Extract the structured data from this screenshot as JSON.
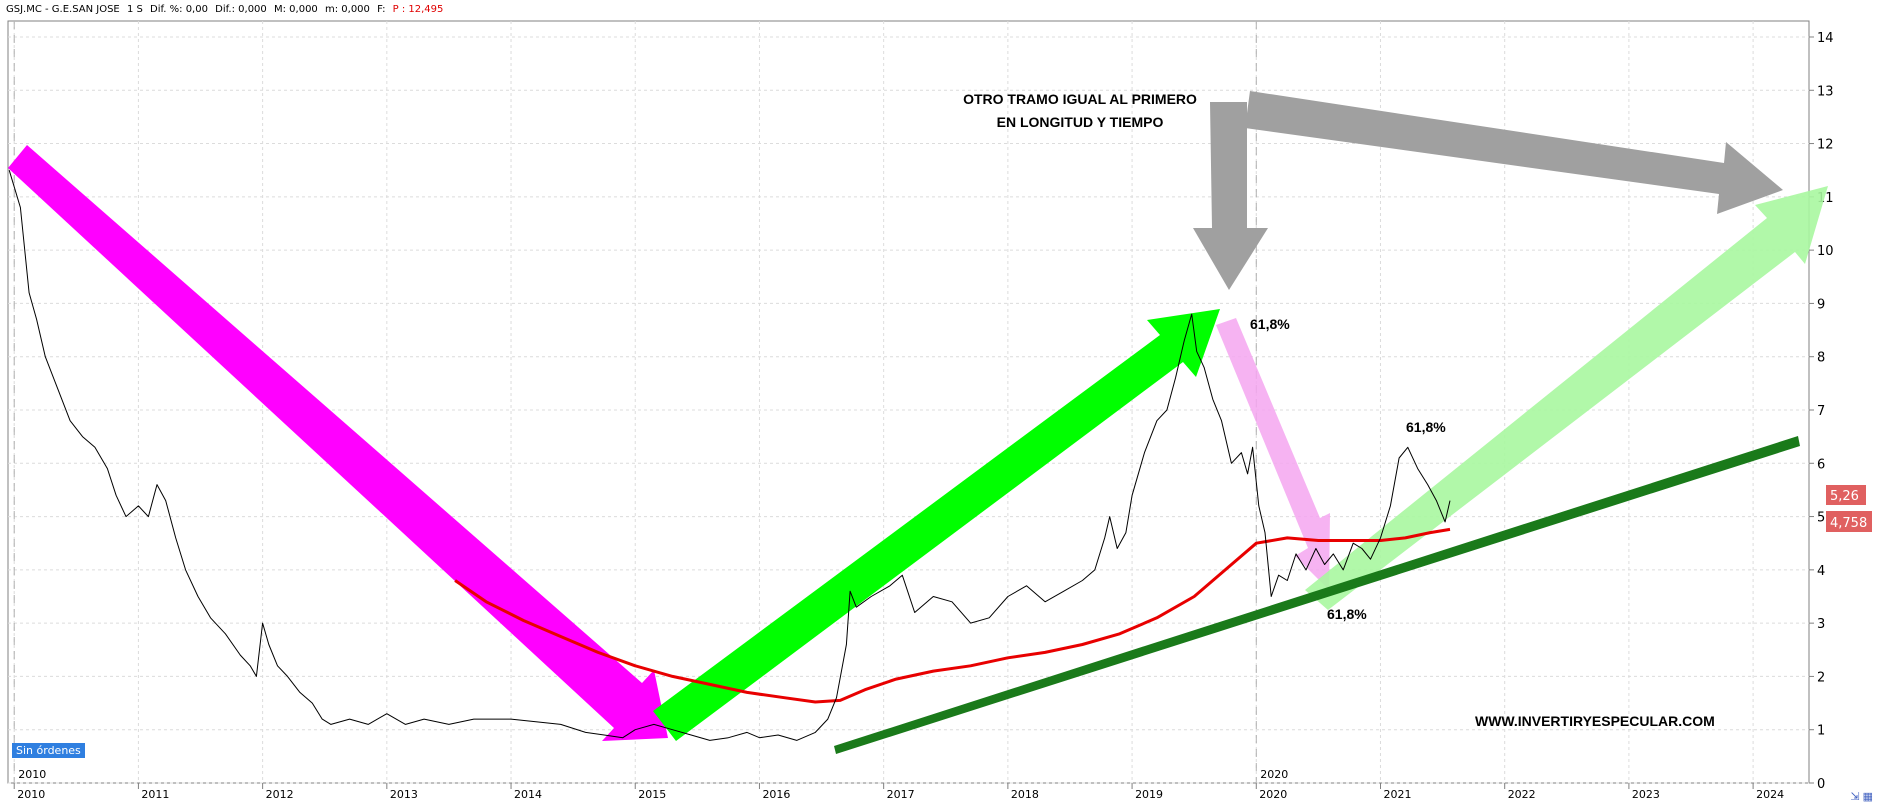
{
  "header": {
    "symbol": "GSJ.MC - G.E.SAN JOSE",
    "period": "1 S",
    "dif_pct": "Dif. %: 0,00",
    "dif": "Dif.: 0,000",
    "m1": "M: 0,000",
    "m2": "m: 0,000",
    "f": "F:",
    "price": "P : 12,495"
  },
  "badge": "Sin órdenes",
  "annotations": {
    "title_line1": "OTRO TRAMO IGUAL AL PRIMERO",
    "title_line2": "EN LONGITUD Y TIEMPO",
    "fib1": "61,8%",
    "fib2": "61,8%",
    "fib3": "61,8%",
    "website": "WWW.INVERTIRYESPECULAR.COM"
  },
  "price_tags": {
    "last": "5,26",
    "ma": "4,758"
  },
  "colors": {
    "magenta": "#ff00ff",
    "bright_green": "#00ff00",
    "light_green": "#a8f7a0",
    "dark_green": "#1a7a1a",
    "gray": "#a0a0a0",
    "pink": "#f5a6f0",
    "ma_red": "#e80000",
    "tag_red": "#e06060"
  },
  "icons": [
    "zoom-icon",
    "chart-type-icon"
  ],
  "chart_data": {
    "type": "line",
    "x_ticks": [
      "2010",
      "2011",
      "2012",
      "2013",
      "2014",
      "2015",
      "2016",
      "2017",
      "2018",
      "2019",
      "2020",
      "2021",
      "2022",
      "2023",
      "2024"
    ],
    "y_ticks": [
      "0",
      "1",
      "2",
      "3",
      "4",
      "5",
      "6",
      "7",
      "8",
      "9",
      "10",
      "11",
      "12",
      "13",
      "14"
    ],
    "xlim": [
      2009.95,
      2024.45
    ],
    "ylim": [
      0,
      14.3
    ],
    "marker_labels": [
      "2010",
      "2020"
    ],
    "series": [
      {
        "values": [
          [
            2009.96,
            11.5
          ],
          [
            2010.05,
            10.8
          ],
          [
            2010.12,
            9.2
          ],
          [
            2010.18,
            8.7
          ],
          [
            2010.25,
            8.0
          ],
          [
            2010.35,
            7.4
          ],
          [
            2010.45,
            6.8
          ],
          [
            2010.55,
            6.5
          ],
          [
            2010.65,
            6.3
          ],
          [
            2010.75,
            5.9
          ],
          [
            2010.82,
            5.4
          ],
          [
            2010.9,
            5.0
          ],
          [
            2011.0,
            5.2
          ],
          [
            2011.08,
            5.0
          ],
          [
            2011.15,
            5.6
          ],
          [
            2011.22,
            5.3
          ],
          [
            2011.3,
            4.6
          ],
          [
            2011.38,
            4.0
          ],
          [
            2011.48,
            3.5
          ],
          [
            2011.58,
            3.1
          ],
          [
            2011.7,
            2.8
          ],
          [
            2011.82,
            2.4
          ],
          [
            2011.9,
            2.2
          ],
          [
            2011.95,
            2.0
          ],
          [
            2012.0,
            3.0
          ],
          [
            2012.05,
            2.6
          ],
          [
            2012.12,
            2.2
          ],
          [
            2012.2,
            2.0
          ],
          [
            2012.3,
            1.7
          ],
          [
            2012.4,
            1.5
          ],
          [
            2012.48,
            1.2
          ],
          [
            2012.55,
            1.1
          ],
          [
            2012.7,
            1.2
          ],
          [
            2012.85,
            1.1
          ],
          [
            2013.0,
            1.3
          ],
          [
            2013.15,
            1.1
          ],
          [
            2013.3,
            1.2
          ],
          [
            2013.5,
            1.1
          ],
          [
            2013.7,
            1.2
          ],
          [
            2013.85,
            1.2
          ],
          [
            2014.0,
            1.2
          ],
          [
            2014.2,
            1.15
          ],
          [
            2014.4,
            1.1
          ],
          [
            2014.6,
            0.95
          ],
          [
            2014.75,
            0.9
          ],
          [
            2014.9,
            0.85
          ],
          [
            2015.0,
            1.0
          ],
          [
            2015.15,
            1.1
          ],
          [
            2015.3,
            1.0
          ],
          [
            2015.45,
            0.9
          ],
          [
            2015.6,
            0.8
          ],
          [
            2015.75,
            0.85
          ],
          [
            2015.9,
            0.95
          ],
          [
            2016.0,
            0.85
          ],
          [
            2016.15,
            0.9
          ],
          [
            2016.3,
            0.8
          ],
          [
            2016.45,
            0.95
          ],
          [
            2016.55,
            1.2
          ],
          [
            2016.62,
            1.6
          ],
          [
            2016.7,
            2.6
          ],
          [
            2016.73,
            3.6
          ],
          [
            2016.78,
            3.3
          ],
          [
            2016.9,
            3.5
          ],
          [
            2017.05,
            3.7
          ],
          [
            2017.15,
            3.9
          ],
          [
            2017.25,
            3.2
          ],
          [
            2017.4,
            3.5
          ],
          [
            2017.55,
            3.4
          ],
          [
            2017.7,
            3.0
          ],
          [
            2017.85,
            3.1
          ],
          [
            2018.0,
            3.5
          ],
          [
            2018.15,
            3.7
          ],
          [
            2018.3,
            3.4
          ],
          [
            2018.45,
            3.6
          ],
          [
            2018.6,
            3.8
          ],
          [
            2018.7,
            4.0
          ],
          [
            2018.78,
            4.6
          ],
          [
            2018.82,
            5.0
          ],
          [
            2018.88,
            4.4
          ],
          [
            2018.95,
            4.7
          ],
          [
            2019.0,
            5.4
          ],
          [
            2019.1,
            6.2
          ],
          [
            2019.2,
            6.8
          ],
          [
            2019.28,
            7.0
          ],
          [
            2019.35,
            7.6
          ],
          [
            2019.42,
            8.3
          ],
          [
            2019.48,
            8.8
          ],
          [
            2019.52,
            8.1
          ],
          [
            2019.58,
            7.8
          ],
          [
            2019.65,
            7.2
          ],
          [
            2019.72,
            6.8
          ],
          [
            2019.8,
            6.0
          ],
          [
            2019.88,
            6.2
          ],
          [
            2019.93,
            5.8
          ],
          [
            2019.97,
            6.3
          ],
          [
            2020.02,
            5.2
          ],
          [
            2020.07,
            4.7
          ],
          [
            2020.12,
            3.5
          ],
          [
            2020.18,
            3.9
          ],
          [
            2020.25,
            3.8
          ],
          [
            2020.32,
            4.3
          ],
          [
            2020.4,
            4.0
          ],
          [
            2020.48,
            4.4
          ],
          [
            2020.55,
            4.1
          ],
          [
            2020.62,
            4.3
          ],
          [
            2020.7,
            4.0
          ],
          [
            2020.78,
            4.5
          ],
          [
            2020.85,
            4.4
          ],
          [
            2020.92,
            4.2
          ],
          [
            2021.0,
            4.6
          ],
          [
            2021.08,
            5.2
          ],
          [
            2021.15,
            6.1
          ],
          [
            2021.22,
            6.3
          ],
          [
            2021.3,
            5.9
          ],
          [
            2021.38,
            5.6
          ],
          [
            2021.45,
            5.3
          ],
          [
            2021.52,
            4.9
          ],
          [
            2021.56,
            5.3
          ]
        ]
      },
      {
        "color": "#e80000",
        "values": [
          [
            2013.55,
            3.8
          ],
          [
            2013.8,
            3.4
          ],
          [
            2014.1,
            3.05
          ],
          [
            2014.4,
            2.75
          ],
          [
            2014.7,
            2.45
          ],
          [
            2015.0,
            2.2
          ],
          [
            2015.3,
            2.0
          ],
          [
            2015.6,
            1.85
          ],
          [
            2015.9,
            1.7
          ],
          [
            2016.2,
            1.6
          ],
          [
            2016.45,
            1.52
          ],
          [
            2016.65,
            1.55
          ],
          [
            2016.85,
            1.75
          ],
          [
            2017.1,
            1.95
          ],
          [
            2017.4,
            2.1
          ],
          [
            2017.7,
            2.2
          ],
          [
            2018.0,
            2.35
          ],
          [
            2018.3,
            2.45
          ],
          [
            2018.6,
            2.6
          ],
          [
            2018.9,
            2.8
          ],
          [
            2019.2,
            3.1
          ],
          [
            2019.5,
            3.5
          ],
          [
            2019.75,
            4.0
          ],
          [
            2020.0,
            4.5
          ],
          [
            2020.25,
            4.6
          ],
          [
            2020.5,
            4.55
          ],
          [
            2020.75,
            4.55
          ],
          [
            2021.0,
            4.55
          ],
          [
            2021.2,
            4.6
          ],
          [
            2021.4,
            4.7
          ],
          [
            2021.56,
            4.76
          ]
        ]
      }
    ]
  }
}
